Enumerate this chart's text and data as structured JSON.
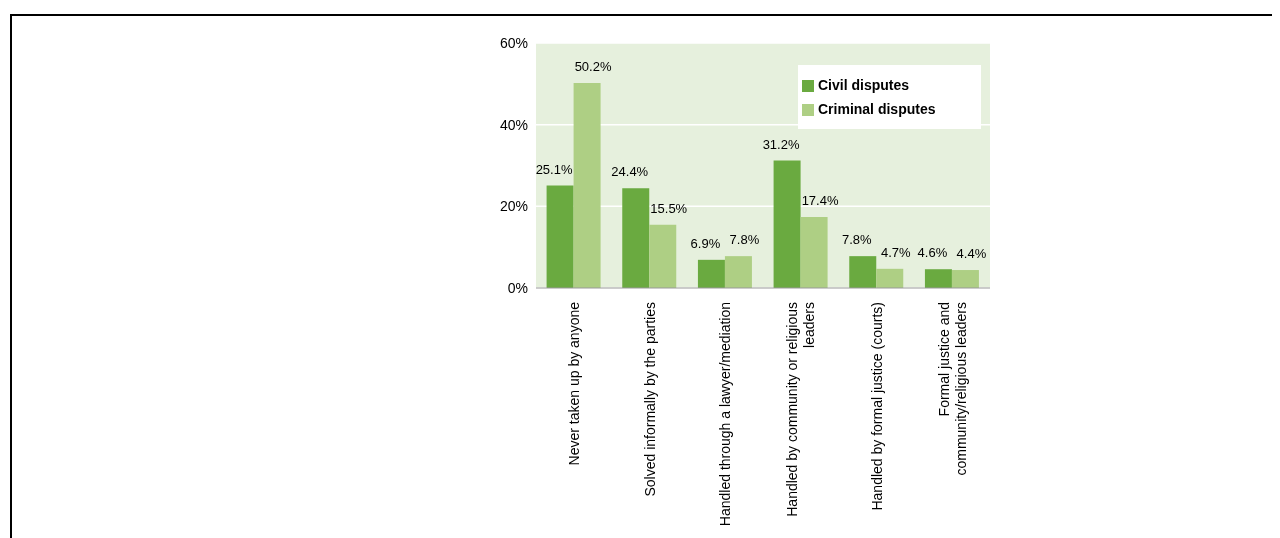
{
  "chart_data": {
    "type": "bar",
    "categories": [
      "Never taken up by anyone",
      "Solved informally by the parties",
      "Handled through a lawyer/mediation",
      "Handled by community or religious leaders",
      "Handled by formal justice (courts)",
      "Formal justice and community/religious leaders"
    ],
    "series": [
      {
        "name": "Civil disputes",
        "color": "#6aaa40",
        "values": [
          25.1,
          24.4,
          6.9,
          31.2,
          7.8,
          4.6
        ],
        "value_labels": [
          "25.1%",
          "24.4%",
          "6.9%",
          "31.2%",
          "7.8%",
          "4.6%"
        ]
      },
      {
        "name": "Criminal disputes",
        "color": "#aecf84",
        "values": [
          50.2,
          15.5,
          7.8,
          17.4,
          4.7,
          4.4
        ],
        "value_labels": [
          "50.2%",
          "15.5%",
          "7.8%",
          "17.4%",
          "4.7%",
          "4.4%"
        ]
      }
    ],
    "ylim": [
      0,
      60
    ],
    "yticks": [
      {
        "value": 0,
        "label": "0%"
      },
      {
        "value": 20,
        "label": "20%"
      },
      {
        "value": 40,
        "label": "40%"
      },
      {
        "value": 60,
        "label": "60%"
      }
    ],
    "grid": "y",
    "legend": "top right"
  }
}
